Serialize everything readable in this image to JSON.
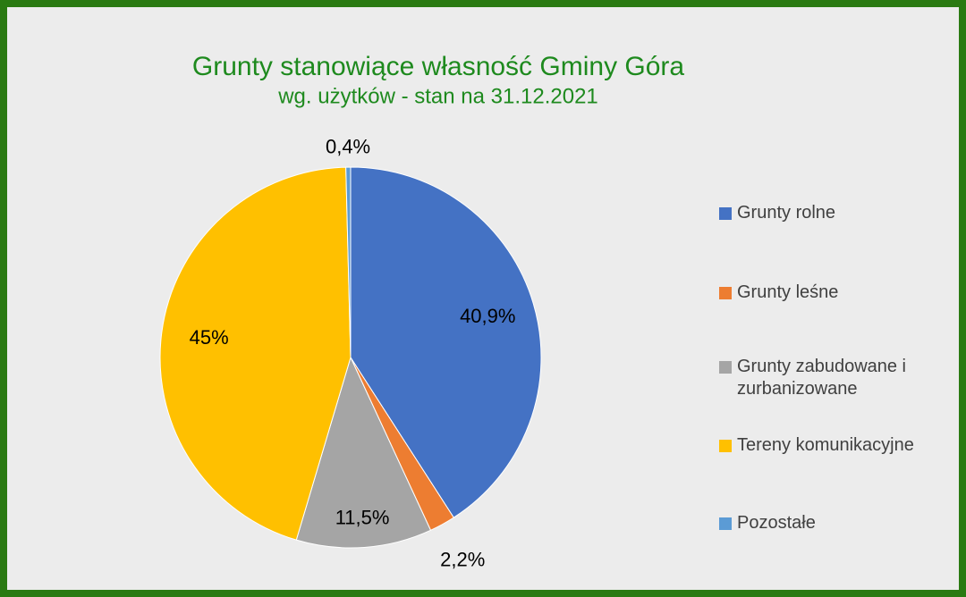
{
  "chart_data": {
    "type": "pie",
    "title": "Grunty stanowiące własność Gminy Góra",
    "subtitle": "wg. użytków - stan na 31.12.2021",
    "categories": [
      "Grunty rolne",
      "Grunty leśne",
      "Grunty zabudowane i zurbanizowane",
      "Tereny komunikacyjne",
      "Pozostałe"
    ],
    "values": [
      40.9,
      2.2,
      11.5,
      45,
      0.4
    ],
    "value_labels": [
      "40,9%",
      "2,2%",
      "11,5%",
      "45%",
      "0,4%"
    ],
    "colors": [
      "#4472c4",
      "#ed7d31",
      "#a5a5a5",
      "#ffc000",
      "#5b9bd5"
    ],
    "legend": "right"
  }
}
